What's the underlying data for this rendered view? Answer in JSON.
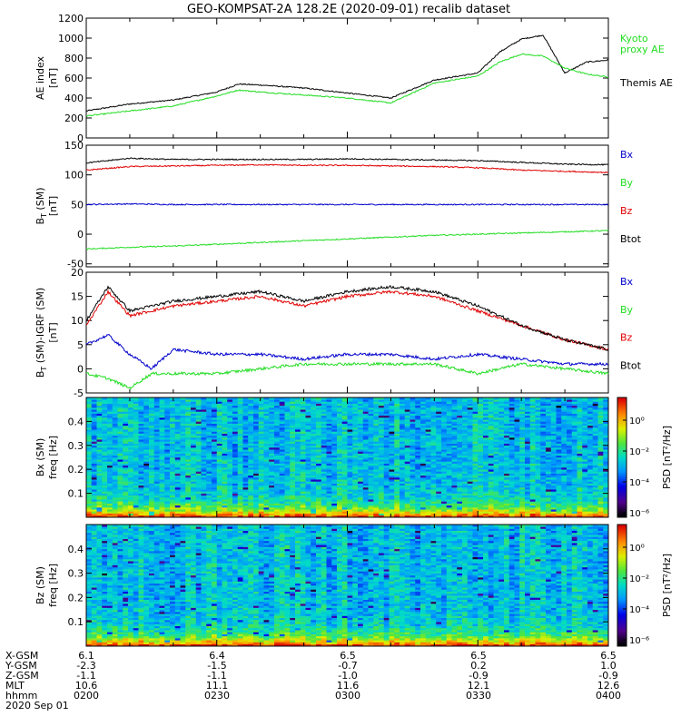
{
  "title": "GEO-KOMPSAT-2A 128.2E (2020-09-01) recalib dataset",
  "colors": {
    "black": "#000000",
    "red": "#e00000",
    "green": "#22dd22",
    "blue": "#0000cc"
  },
  "panels": [
    {
      "ylabel": [
        "AE index",
        "[nT]"
      ],
      "ylim": [
        0,
        1200
      ],
      "ticks": [
        0,
        200,
        400,
        600,
        800,
        1000,
        1200
      ],
      "legend": [
        {
          "label": "Kyoto\nproxy AE",
          "color": "green"
        },
        {
          "label": "Themis AE",
          "color": "black"
        }
      ]
    },
    {
      "ylabel": [
        "B (SM)",
        "[nT]"
      ],
      "sub": "T",
      "ylim": [
        -55,
        150
      ],
      "ticks": [
        -50,
        0,
        50,
        100,
        150
      ],
      "legend": [
        {
          "label": "Bx",
          "color": "blue"
        },
        {
          "label": "By",
          "color": "green"
        },
        {
          "label": "Bz",
          "color": "red"
        },
        {
          "label": "Btot",
          "color": "black"
        }
      ]
    },
    {
      "ylabel": [
        "B (SM)-IGRF (SM)",
        "[nT]"
      ],
      "sub": "T",
      "ylim": [
        -5,
        20
      ],
      "ticks": [
        -5,
        0,
        5,
        10,
        15,
        20
      ],
      "legend": [
        {
          "label": "Bx",
          "color": "blue"
        },
        {
          "label": "By",
          "color": "green"
        },
        {
          "label": "Bz",
          "color": "red"
        },
        {
          "label": "Btot",
          "color": "black"
        }
      ]
    },
    {
      "ylabel": [
        "Bx (SM)",
        "freq [Hz]"
      ],
      "ylim": [
        0,
        0.5
      ],
      "ticks": [
        0.1,
        0.2,
        0.3,
        0.4
      ],
      "colorbar": {
        "label": "PSD [nT²/Hz]",
        "ticks": [
          "10⁰",
          "10⁻²",
          "10⁻⁴",
          "10⁻⁶"
        ]
      }
    },
    {
      "ylabel": [
        "Bz (SM)",
        "freq [Hz]"
      ],
      "ylim": [
        0,
        0.5
      ],
      "ticks": [
        0.1,
        0.2,
        0.3,
        0.4
      ],
      "colorbar": {
        "label": "PSD [nT²/Hz]",
        "ticks": [
          "10⁰",
          "10⁻²",
          "10⁻⁴",
          "10⁻⁶"
        ]
      }
    }
  ],
  "ephemeris": {
    "labels": [
      "X-GSM",
      "Y-GSM",
      "Z-GSM",
      "MLT",
      "hhmm"
    ],
    "columns": [
      {
        "values": [
          "6.1",
          "-2.3",
          "-1.1",
          "10.6",
          "0200"
        ]
      },
      {
        "values": [
          "6.4",
          "-1.5",
          "-1.1",
          "11.1",
          "0230"
        ]
      },
      {
        "values": [
          "6.5",
          "-0.7",
          "-1.0",
          "11.6",
          "0300"
        ]
      },
      {
        "values": [
          "6.5",
          "0.2",
          "-0.9",
          "12.1",
          "0330"
        ]
      },
      {
        "values": [
          "6.5",
          "1.0",
          "-0.9",
          "12.6",
          "0400"
        ]
      }
    ],
    "date": "2020 Sep 01"
  },
  "chart_data": [
    {
      "type": "line",
      "title": "GEO-KOMPSAT-2A 128.2E (2020-09-01) recalib dataset",
      "ylabel": "AE index [nT]",
      "ylim": [
        0,
        1200
      ],
      "x": [
        "02:00",
        "02:10",
        "02:20",
        "02:30",
        "02:35",
        "02:40",
        "02:50",
        "03:00",
        "03:10",
        "03:20",
        "03:30",
        "03:35",
        "03:40",
        "03:45",
        "03:50",
        "03:55",
        "04:00"
      ],
      "series": [
        {
          "name": "Themis AE",
          "color": "black",
          "values": [
            270,
            340,
            380,
            460,
            540,
            530,
            500,
            450,
            400,
            580,
            650,
            860,
            990,
            1030,
            650,
            760,
            780
          ]
        },
        {
          "name": "Kyoto proxy AE",
          "color": "green",
          "values": [
            220,
            270,
            320,
            420,
            480,
            460,
            430,
            400,
            350,
            550,
            620,
            760,
            840,
            820,
            700,
            640,
            610
          ]
        }
      ]
    },
    {
      "type": "line",
      "ylabel": "B_T (SM) [nT]",
      "ylim": [
        -55,
        150
      ],
      "x": [
        "02:00",
        "02:10",
        "02:20",
        "02:30",
        "02:40",
        "02:50",
        "03:00",
        "03:10",
        "03:20",
        "03:30",
        "03:40",
        "03:50",
        "04:00"
      ],
      "series": [
        {
          "name": "Bx",
          "color": "blue",
          "values": [
            50,
            51,
            50,
            50,
            50,
            50,
            50,
            50,
            50,
            50,
            50,
            50,
            50
          ]
        },
        {
          "name": "By",
          "color": "green",
          "values": [
            -25,
            -22,
            -20,
            -17,
            -14,
            -11,
            -8,
            -5,
            -2,
            0,
            2,
            4,
            6
          ]
        },
        {
          "name": "Bz",
          "color": "red",
          "values": [
            108,
            114,
            115,
            116,
            117,
            116,
            116,
            115,
            114,
            112,
            108,
            106,
            104
          ]
        },
        {
          "name": "Btot",
          "color": "black",
          "values": [
            120,
            128,
            126,
            126,
            126,
            126,
            127,
            126,
            125,
            124,
            121,
            118,
            117
          ]
        }
      ]
    },
    {
      "type": "line",
      "ylabel": "B_T (SM)-IGRF (SM) [nT]",
      "ylim": [
        -5,
        20
      ],
      "x": [
        "02:00",
        "02:05",
        "02:10",
        "02:15",
        "02:20",
        "02:30",
        "02:40",
        "02:50",
        "03:00",
        "03:10",
        "03:20",
        "03:30",
        "03:40",
        "03:50",
        "04:00"
      ],
      "series": [
        {
          "name": "Bx",
          "color": "blue",
          "values": [
            5,
            7,
            3,
            0,
            4,
            3,
            3,
            2,
            3,
            3,
            2,
            3,
            2,
            1,
            1
          ]
        },
        {
          "name": "By",
          "color": "green",
          "values": [
            -1,
            -2,
            -4,
            -1,
            -1,
            -1,
            0,
            1,
            1,
            1,
            1,
            -1,
            1,
            0,
            -1
          ]
        },
        {
          "name": "Bz",
          "color": "red",
          "values": [
            9,
            16,
            11,
            12,
            13,
            14,
            15,
            13,
            15,
            16,
            15,
            12,
            9,
            6,
            4
          ]
        },
        {
          "name": "Btot",
          "color": "black",
          "values": [
            10,
            17,
            12,
            13,
            14,
            15,
            16,
            14,
            16,
            17,
            16,
            13,
            9,
            6,
            4
          ]
        }
      ]
    },
    {
      "type": "heatmap",
      "ylabel": "Bx (SM) freq [Hz]",
      "ylim": [
        0,
        0.5
      ],
      "colorbar_label": "PSD [nT²/Hz]"
    },
    {
      "type": "heatmap",
      "ylabel": "Bz (SM) freq [Hz]",
      "ylim": [
        0,
        0.5
      ],
      "colorbar_label": "PSD [nT²/Hz]"
    }
  ]
}
